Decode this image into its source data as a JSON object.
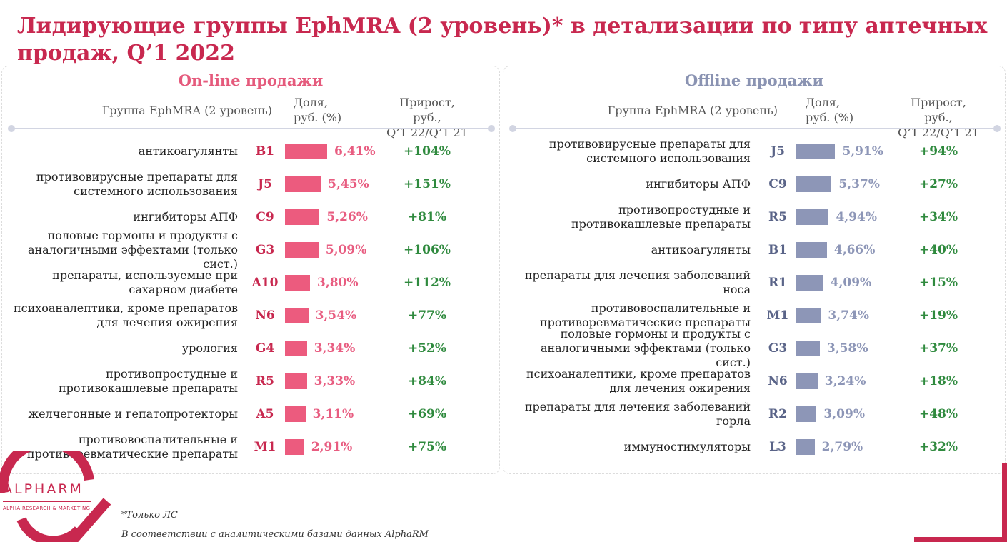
{
  "title": "Лидирующие группы EphMRA (2 уровень)* в детализации по типу аптечных продаж, Q’1 2022",
  "colors": {
    "online_bar": "#ec5b7e",
    "offline_bar": "#8d96b7",
    "growth": "#2f8a3e",
    "brand": "#c8284f"
  },
  "headers": {
    "group": "Группа EphMRA (2 уровень)",
    "share_line1": "Доля,",
    "share_line2": "руб. (%)",
    "growth_line1": "Прирост, руб.,",
    "growth_line2": "Q’1 22/Q’1 21"
  },
  "chart_data": [
    {
      "type": "bar",
      "title": "On-line продажи",
      "categories": [
        "антикоагулянты",
        "противовирусные препараты для системного использования",
        "ингибиторы АПФ",
        "половые гормоны и продукты с аналогичными эффектами (только сист.)",
        "препараты, используемые при сахарном диабете",
        "психоаналептики, кроме препаратов для лечения ожирения",
        "урология",
        "противопростудные и противокашлевые препараты",
        "желчегонные и гепатопротекторы",
        "противовоспалительные и противоревматические препараты"
      ],
      "codes": [
        "B1",
        "J5",
        "C9",
        "G3",
        "A10",
        "N6",
        "G4",
        "R5",
        "A5",
        "M1"
      ],
      "values": [
        6.41,
        5.45,
        5.26,
        5.09,
        3.8,
        3.54,
        3.34,
        3.33,
        3.11,
        2.91
      ],
      "value_labels": [
        "6,41%",
        "5,45%",
        "5,26%",
        "5,09%",
        "3,80%",
        "3,54%",
        "3,34%",
        "3,33%",
        "3,11%",
        "2,91%"
      ],
      "growth_labels": [
        "+104%",
        "+151%",
        "+81%",
        "+106%",
        "+112%",
        "+77%",
        "+52%",
        "+84%",
        "+69%",
        "+75%"
      ]
    },
    {
      "type": "bar",
      "title": "Offline продажи",
      "categories": [
        "противовирусные препараты для системного использования",
        "ингибиторы АПФ",
        "противопростудные и противокашлевые препараты",
        "антикоагулянты",
        "препараты для лечения заболеваний носа",
        "противовоспалительные и противоревматические препараты",
        "половые гормоны и продукты с аналогичными эффектами (только сист.)",
        "психоаналептики, кроме препаратов для лечения ожирения",
        "препараты для лечения заболеваний горла",
        "иммуностимуляторы"
      ],
      "codes": [
        "J5",
        "C9",
        "R5",
        "B1",
        "R1",
        "M1",
        "G3",
        "N6",
        "R2",
        "L3"
      ],
      "values": [
        5.91,
        5.37,
        4.94,
        4.66,
        4.09,
        3.74,
        3.58,
        3.24,
        3.09,
        2.79
      ],
      "value_labels": [
        "5,91%",
        "5,37%",
        "4,94%",
        "4,66%",
        "4,09%",
        "3,74%",
        "3,58%",
        "3,24%",
        "3,09%",
        "2,79%"
      ],
      "growth_labels": [
        "+94%",
        "+27%",
        "+34%",
        "+40%",
        "+15%",
        "+19%",
        "+37%",
        "+18%",
        "+48%",
        "+32%"
      ]
    }
  ],
  "logo": {
    "name": "ALPHARM",
    "subtitle": "ALPHA RESEARCH & MARKETING"
  },
  "footnotes": {
    "note1": "*Только ЛС",
    "note2": "В соответствии с аналитическими базами данных AlphaRM"
  }
}
